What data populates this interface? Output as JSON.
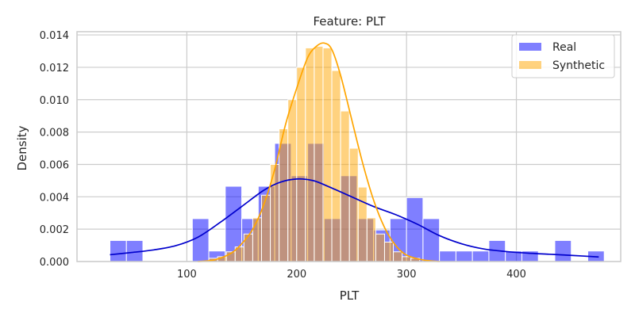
{
  "chart_data": {
    "type": "histogram",
    "title": "Feature: PLT",
    "xlabel": "PLT",
    "ylabel": "Density",
    "xlim": [
      0,
      495
    ],
    "ylim": [
      0,
      0.0142
    ],
    "x_ticks": [
      100,
      200,
      300,
      400
    ],
    "y_ticks": [
      0,
      0.002,
      0.004,
      0.006,
      0.008,
      0.01,
      0.012,
      0.014
    ],
    "y_tick_labels": [
      "0.000",
      "0.002",
      "0.004",
      "0.006",
      "0.008",
      "0.010",
      "0.012",
      "0.014"
    ],
    "grid": true,
    "legend_position": "top-right",
    "series": [
      {
        "name": "Real",
        "color": "#0000ff",
        "opacity": 0.5,
        "kde_color": "#0000cc",
        "bins": [
          {
            "x0": 30,
            "x1": 45,
            "y": 0.0013
          },
          {
            "x0": 45,
            "x1": 60,
            "y": 0.0013
          },
          {
            "x0": 60,
            "x1": 75,
            "y": 0
          },
          {
            "x0": 75,
            "x1": 90,
            "y": 0
          },
          {
            "x0": 90,
            "x1": 105,
            "y": 0
          },
          {
            "x0": 105,
            "x1": 120,
            "y": 0.00265
          },
          {
            "x0": 120,
            "x1": 135,
            "y": 0.00065
          },
          {
            "x0": 135,
            "x1": 150,
            "y": 0.00465
          },
          {
            "x0": 150,
            "x1": 165,
            "y": 0.00265
          },
          {
            "x0": 165,
            "x1": 180,
            "y": 0.00465
          },
          {
            "x0": 180,
            "x1": 195,
            "y": 0.0073
          },
          {
            "x0": 195,
            "x1": 210,
            "y": 0.0053
          },
          {
            "x0": 210,
            "x1": 225,
            "y": 0.0073
          },
          {
            "x0": 225,
            "x1": 240,
            "y": 0.00265
          },
          {
            "x0": 240,
            "x1": 255,
            "y": 0.0053
          },
          {
            "x0": 255,
            "x1": 270,
            "y": 0.00265
          },
          {
            "x0": 270,
            "x1": 285,
            "y": 0.00195
          },
          {
            "x0": 285,
            "x1": 300,
            "y": 0.00265
          },
          {
            "x0": 300,
            "x1": 315,
            "y": 0.00395
          },
          {
            "x0": 315,
            "x1": 330,
            "y": 0.00265
          },
          {
            "x0": 330,
            "x1": 345,
            "y": 0.00065
          },
          {
            "x0": 345,
            "x1": 360,
            "y": 0.00065
          },
          {
            "x0": 360,
            "x1": 375,
            "y": 0.00065
          },
          {
            "x0": 375,
            "x1": 390,
            "y": 0.0013
          },
          {
            "x0": 390,
            "x1": 405,
            "y": 0.00065
          },
          {
            "x0": 405,
            "x1": 420,
            "y": 0.00065
          },
          {
            "x0": 420,
            "x1": 435,
            "y": 0
          },
          {
            "x0": 435,
            "x1": 450,
            "y": 0.0013
          },
          {
            "x0": 450,
            "x1": 465,
            "y": 0
          },
          {
            "x0": 465,
            "x1": 480,
            "y": 0.00065
          }
        ],
        "kde": {
          "x": [
            30,
            50,
            70,
            90,
            110,
            130,
            150,
            170,
            185,
            200,
            215,
            230,
            250,
            270,
            290,
            310,
            330,
            350,
            370,
            390,
            410,
            430,
            450,
            475
          ],
          "y": [
            0.00042,
            0.00056,
            0.00072,
            0.00098,
            0.0015,
            0.0024,
            0.0034,
            0.0044,
            0.0049,
            0.0051,
            0.005,
            0.0046,
            0.004,
            0.0034,
            0.0029,
            0.0023,
            0.0016,
            0.0011,
            0.00078,
            0.00062,
            0.00052,
            0.00045,
            0.00038,
            0.00028
          ]
        }
      },
      {
        "name": "Synthetic",
        "color": "#ffa500",
        "opacity": 0.5,
        "kde_color": "#ffa500",
        "bins": [
          {
            "x0": 120,
            "x1": 128,
            "y": 0.0002
          },
          {
            "x0": 128,
            "x1": 136,
            "y": 0.0003
          },
          {
            "x0": 136,
            "x1": 144,
            "y": 0.0006
          },
          {
            "x0": 144,
            "x1": 152,
            "y": 0.0009
          },
          {
            "x0": 152,
            "x1": 160,
            "y": 0.0017
          },
          {
            "x0": 160,
            "x1": 168,
            "y": 0.0027
          },
          {
            "x0": 168,
            "x1": 176,
            "y": 0.0041
          },
          {
            "x0": 176,
            "x1": 184,
            "y": 0.006
          },
          {
            "x0": 184,
            "x1": 192,
            "y": 0.0082
          },
          {
            "x0": 192,
            "x1": 200,
            "y": 0.01
          },
          {
            "x0": 200,
            "x1": 208,
            "y": 0.012
          },
          {
            "x0": 208,
            "x1": 216,
            "y": 0.0132
          },
          {
            "x0": 216,
            "x1": 224,
            "y": 0.0133
          },
          {
            "x0": 224,
            "x1": 232,
            "y": 0.0132
          },
          {
            "x0": 232,
            "x1": 240,
            "y": 0.0118
          },
          {
            "x0": 240,
            "x1": 248,
            "y": 0.0093
          },
          {
            "x0": 248,
            "x1": 256,
            "y": 0.007
          },
          {
            "x0": 256,
            "x1": 264,
            "y": 0.0046
          },
          {
            "x0": 264,
            "x1": 272,
            "y": 0.0027
          },
          {
            "x0": 272,
            "x1": 280,
            "y": 0.0017
          },
          {
            "x0": 280,
            "x1": 288,
            "y": 0.0012
          },
          {
            "x0": 288,
            "x1": 296,
            "y": 0.0006
          },
          {
            "x0": 296,
            "x1": 304,
            "y": 0.0003
          },
          {
            "x0": 304,
            "x1": 312,
            "y": 0.0002
          }
        ],
        "kde": {
          "x": [
            110,
            125,
            140,
            150,
            160,
            170,
            180,
            190,
            200,
            210,
            218,
            225,
            232,
            240,
            250,
            260,
            270,
            280,
            290,
            300,
            315,
            330
          ],
          "y": [
            0.0,
            0.0001,
            0.0005,
            0.0011,
            0.002,
            0.0035,
            0.0057,
            0.0085,
            0.0107,
            0.0126,
            0.0133,
            0.0135,
            0.0131,
            0.0115,
            0.0088,
            0.0061,
            0.0038,
            0.0021,
            0.001,
            0.0004,
            0.0001,
            0.0
          ]
        }
      }
    ]
  }
}
